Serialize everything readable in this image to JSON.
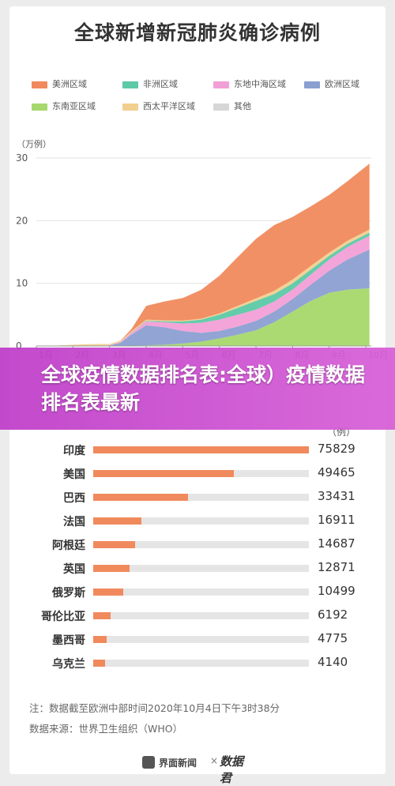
{
  "title": "全球新增新冠肺炎确诊病例",
  "legend": [
    {
      "name": "美洲区域",
      "color": "#f08a5d"
    },
    {
      "name": "非洲区域",
      "color": "#5cc9a7"
    },
    {
      "name": "东地中海区域",
      "color": "#f29fd6"
    },
    {
      "name": "欧洲区域",
      "color": "#8b9fd1"
    },
    {
      "name": "东南亚区域",
      "color": "#a6d86c"
    },
    {
      "name": "西太平洋区域",
      "color": "#f2cf8f"
    },
    {
      "name": "其他",
      "color": "#d6d6d6"
    }
  ],
  "banner_text": "全球疫情数据排名表:全球）疫情数据排名表最新",
  "bar_unit": "（例）",
  "bar_color": "#f08a5d",
  "note": "注：数据截至欧洲中部时间2020年10月4日下午3时38分",
  "source": "数据来源：世界卫生组织（WHO）",
  "footer": {
    "logo_text": "界面新闻",
    "separator": "×",
    "brand": "数据君"
  },
  "chart_data": [
    {
      "type": "area",
      "title": "全球新增新冠肺炎确诊病例",
      "ylabel": "（万例）",
      "ylim": [
        0,
        30
      ],
      "yticks": [
        0,
        10,
        20,
        30
      ],
      "xticks": [
        "1月",
        "2月",
        "3月",
        "4月",
        "5月",
        "6月",
        "7月",
        "8月",
        "9月",
        "10月"
      ],
      "xlim": [
        1,
        10.15
      ],
      "stacked": true,
      "x": [
        1,
        1.5,
        2,
        2.5,
        3,
        3.3,
        3.6,
        4,
        4.5,
        5,
        5.5,
        6,
        6.5,
        7,
        7.5,
        8,
        8.5,
        9,
        9.5,
        10.1
      ],
      "series": [
        {
          "name": "东南亚区域",
          "values": [
            0,
            0,
            0,
            0,
            0,
            0.02,
            0.05,
            0.1,
            0.2,
            0.4,
            0.7,
            1.2,
            1.8,
            2.5,
            3.8,
            5.5,
            7.2,
            8.5,
            9.0,
            9.2
          ]
        },
        {
          "name": "欧洲区域",
          "values": [
            0,
            0,
            0,
            0,
            0.1,
            0.5,
            1.8,
            3.2,
            2.8,
            2.0,
            1.4,
            1.2,
            1.3,
            1.5,
            1.7,
            2.0,
            2.6,
            3.5,
            4.8,
            6.2
          ]
        },
        {
          "name": "东地中海区域",
          "values": [
            0,
            0,
            0,
            0,
            0.02,
            0.1,
            0.3,
            0.6,
            0.8,
            1.2,
            1.6,
            1.8,
            1.9,
            1.8,
            1.6,
            1.5,
            1.6,
            1.8,
            2.0,
            2.2
          ]
        },
        {
          "name": "非洲区域",
          "values": [
            0,
            0,
            0,
            0,
            0,
            0.01,
            0.03,
            0.1,
            0.15,
            0.3,
            0.5,
            0.8,
            1.1,
            1.4,
            1.2,
            1.0,
            0.8,
            0.6,
            0.5,
            0.5
          ]
        },
        {
          "name": "西太平洋区域",
          "values": [
            0,
            0.05,
            0.2,
            0.3,
            0.2,
            0.15,
            0.15,
            0.2,
            0.15,
            0.15,
            0.15,
            0.2,
            0.3,
            0.4,
            0.5,
            0.6,
            0.6,
            0.5,
            0.5,
            0.5
          ]
        },
        {
          "name": "美洲区域",
          "values": [
            0,
            0,
            0,
            0,
            0,
            0.05,
            0.4,
            2.2,
            3.0,
            3.6,
            4.6,
            6.0,
            7.8,
            9.5,
            10.5,
            10.0,
            9.5,
            9.2,
            9.5,
            10.5
          ]
        },
        {
          "name": "其他",
          "values": [
            0,
            0,
            0,
            0,
            0,
            0,
            0,
            0,
            0,
            0,
            0,
            0,
            0,
            0,
            0,
            0,
            0,
            0,
            0,
            0
          ]
        }
      ]
    },
    {
      "type": "bar",
      "categories": [
        "印度",
        "美国",
        "巴西",
        "法国",
        "阿根廷",
        "英国",
        "俄罗斯",
        "哥伦比亚",
        "墨西哥",
        "乌克兰"
      ],
      "values": [
        75829,
        49465,
        33431,
        16911,
        14687,
        12871,
        10499,
        6192,
        4775,
        4140
      ],
      "xlim": [
        0,
        75829
      ]
    }
  ]
}
